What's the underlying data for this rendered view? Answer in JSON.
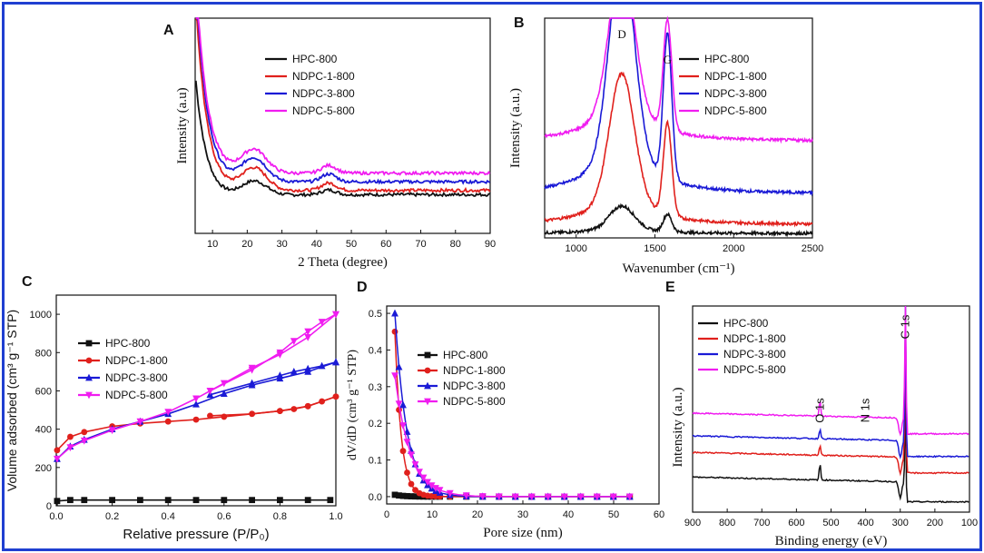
{
  "colors": {
    "frame": "#1f3fd1",
    "black": "#111111",
    "red": "#e0201c",
    "blue": "#1a1ad6",
    "magenta": "#f01cf0"
  },
  "chart_data": [
    {
      "panel": "A",
      "type": "line",
      "xlabel": "2 Theta (degree)",
      "ylabel": "Intensity (a.u)",
      "xlim": [
        5,
        90
      ],
      "xticks": [
        10,
        20,
        30,
        40,
        50,
        60,
        70,
        80,
        90
      ],
      "ylim": [
        0,
        100
      ],
      "legend_position": "top-right",
      "series": [
        {
          "name": "HPC-800",
          "color": "#111111",
          "offset": 12,
          "scale": 0.55
        },
        {
          "name": "NDPC-1-800",
          "color": "#e0201c",
          "offset": 20,
          "scale": 0.85
        },
        {
          "name": "NDPC-3-800",
          "color": "#1a1ad6",
          "offset": 24,
          "scale": 0.9
        },
        {
          "name": "NDPC-5-800",
          "color": "#f01cf0",
          "offset": 28,
          "scale": 0.9
        }
      ]
    },
    {
      "panel": "B",
      "type": "line",
      "xlabel": "Wavenumber (cm⁻¹)",
      "ylabel": "Intensity (a.u.)",
      "xlim": [
        800,
        2500
      ],
      "xticks": [
        1000,
        1500,
        2000,
        2500
      ],
      "ylim": [
        0,
        100
      ],
      "annotations": [
        "D",
        "G"
      ],
      "peaks": [
        1290,
        1580
      ],
      "legend_position": "top-right",
      "series": [
        {
          "name": "HPC-800",
          "color": "#111111",
          "offset": 2,
          "d": 10,
          "g": 8
        },
        {
          "name": "NDPC-1-800",
          "color": "#e0201c",
          "offset": 6,
          "d": 55,
          "g": 42
        },
        {
          "name": "NDPC-3-800",
          "color": "#1a1ad6",
          "offset": 20,
          "d": 88,
          "g": 66
        },
        {
          "name": "NDPC-5-800",
          "color": "#f01cf0",
          "offset": 44,
          "d": 66,
          "g": 50
        }
      ]
    },
    {
      "panel": "C",
      "type": "line",
      "xlabel": "Relative pressure (P/P₀)",
      "ylabel": "Volume adsorbed (cm³ g⁻¹ STP)",
      "xlim": [
        0,
        1.0
      ],
      "xticks": [
        0.0,
        0.2,
        0.4,
        0.6,
        0.8,
        1.0
      ],
      "ylim": [
        0,
        1100
      ],
      "yticks": [
        0,
        200,
        400,
        600,
        800,
        1000
      ],
      "legend_position": "center-left",
      "series": [
        {
          "name": "HPC-800",
          "color": "#111111",
          "marker": "square",
          "x": [
            0.003,
            0.05,
            0.1,
            0.2,
            0.3,
            0.4,
            0.5,
            0.6,
            0.7,
            0.8,
            0.9,
            0.98
          ],
          "y": [
            25,
            30,
            30,
            30,
            30,
            30,
            30,
            30,
            30,
            30,
            30,
            30
          ]
        },
        {
          "name": "NDPC-1-800",
          "color": "#e0201c",
          "marker": "circle",
          "x": [
            0.003,
            0.05,
            0.1,
            0.2,
            0.3,
            0.4,
            0.5,
            0.6,
            0.7,
            0.8,
            0.9,
            1.0
          ],
          "y": [
            290,
            360,
            385,
            415,
            430,
            440,
            450,
            465,
            480,
            495,
            520,
            570
          ],
          "desorb_y": [
            570,
            545,
            520,
            505,
            495,
            480,
            470
          ]
        },
        {
          "name": "NDPC-3-800",
          "color": "#1a1ad6",
          "marker": "triangle",
          "x": [
            0.003,
            0.05,
            0.1,
            0.2,
            0.3,
            0.4,
            0.5,
            0.6,
            0.7,
            0.8,
            0.9,
            1.0
          ],
          "y": [
            245,
            310,
            345,
            400,
            440,
            480,
            530,
            585,
            630,
            665,
            700,
            750
          ],
          "desorb_y": [
            750,
            730,
            715,
            700,
            680,
            640,
            580
          ]
        },
        {
          "name": "NDPC-5-800",
          "color": "#f01cf0",
          "marker": "triangle-down",
          "x": [
            0.003,
            0.05,
            0.1,
            0.2,
            0.3,
            0.4,
            0.5,
            0.6,
            0.7,
            0.8,
            0.9,
            1.0
          ],
          "y": [
            245,
            305,
            340,
            395,
            440,
            490,
            560,
            640,
            720,
            790,
            880,
            1000
          ],
          "desorb_y": [
            1000,
            960,
            910,
            860,
            800,
            710,
            600
          ]
        }
      ]
    },
    {
      "panel": "D",
      "type": "line",
      "xlabel": "Pore size (nm)",
      "ylabel": "dV/dD (cm³ g⁻¹ STP)",
      "xlim": [
        0,
        60
      ],
      "xticks": [
        0,
        10,
        20,
        30,
        40,
        50,
        60
      ],
      "ylim": [
        -0.02,
        0.52
      ],
      "yticks": [
        0.0,
        0.1,
        0.2,
        0.3,
        0.4,
        0.5
      ],
      "legend_position": "center-right",
      "series": [
        {
          "name": "HPC-800",
          "color": "#111111",
          "marker": "square",
          "peak": 0.005,
          "decay": 2.0
        },
        {
          "name": "NDPC-1-800",
          "color": "#e0201c",
          "marker": "circle",
          "peak": 0.45,
          "decay": 1.4
        },
        {
          "name": "NDPC-3-800",
          "color": "#1a1ad6",
          "marker": "triangle",
          "peak": 0.5,
          "decay": 2.6
        },
        {
          "name": "NDPC-5-800",
          "color": "#f01cf0",
          "marker": "triangle-down",
          "peak": 0.33,
          "decay": 3.4
        }
      ]
    },
    {
      "panel": "E",
      "type": "line",
      "xlabel": "Binding energy (eV)",
      "ylabel": "Intensity (a.u.)",
      "xlim": [
        900,
        100
      ],
      "xticks": [
        900,
        800,
        700,
        600,
        500,
        400,
        300,
        200,
        100
      ],
      "ylim": [
        0,
        100
      ],
      "annotations": [
        "O 1s",
        "N 1s",
        "C 1s"
      ],
      "legend_position": "top-left",
      "series": [
        {
          "name": "HPC-800",
          "color": "#111111",
          "offset": 14,
          "c1s": 45,
          "o1s": 8
        },
        {
          "name": "NDPC-1-800",
          "color": "#e0201c",
          "offset": 26,
          "c1s": 70,
          "o1s": 5
        },
        {
          "name": "NDPC-3-800",
          "color": "#1a1ad6",
          "offset": 34,
          "c1s": 75,
          "o1s": 5
        },
        {
          "name": "NDPC-5-800",
          "color": "#f01cf0",
          "offset": 45,
          "c1s": 100,
          "o1s": 8
        }
      ]
    }
  ]
}
